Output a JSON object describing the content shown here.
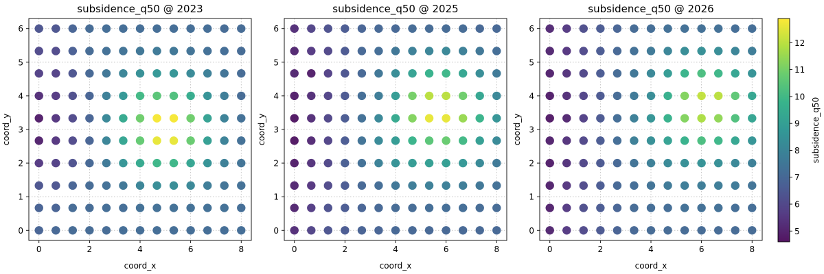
{
  "chart_data": [
    {
      "type": "scatter",
      "title": "subsidence_q50 @ 2023",
      "xlabel": "coord_x",
      "ylabel": "coord_y",
      "xticks": [
        "0",
        "2",
        "4",
        "6",
        "8"
      ],
      "yticks": [
        "0",
        "1",
        "2",
        "3",
        "4",
        "5",
        "6"
      ],
      "xlim": [
        -0.4,
        8.4
      ],
      "ylim": [
        -0.3,
        6.3
      ],
      "grid": true,
      "x": [
        0,
        0.667,
        1.333,
        2,
        2.667,
        3.333,
        4,
        4.667,
        5.333,
        6,
        6.667,
        7.333,
        8
      ],
      "y": [
        0,
        0.667,
        1.333,
        2,
        2.667,
        3.333,
        4,
        4.667,
        5.333,
        6
      ],
      "values": [
        [
          6.9,
          7.0,
          7.1,
          7.1,
          7.1,
          7.2,
          7.2,
          7.2,
          7.2,
          7.2,
          7.2,
          7.2,
          7.2
        ],
        [
          6.8,
          6.8,
          7.1,
          7.1,
          7.2,
          7.2,
          7.3,
          7.3,
          7.3,
          7.3,
          7.3,
          7.3,
          7.2
        ],
        [
          6.4,
          6.4,
          6.9,
          7.1,
          7.3,
          7.5,
          8.0,
          8.3,
          8.3,
          8.1,
          7.7,
          7.4,
          7.3
        ],
        [
          5.6,
          5.8,
          6.3,
          7.0,
          7.6,
          8.6,
          9.4,
          9.9,
          9.9,
          9.2,
          8.5,
          7.8,
          7.4
        ],
        [
          5.0,
          5.5,
          6.1,
          6.9,
          8.0,
          9.2,
          10.7,
          12.6,
          12.6,
          10.8,
          9.0,
          7.9,
          7.3
        ],
        [
          4.9,
          5.5,
          6.1,
          6.9,
          8.1,
          9.4,
          10.9,
          12.8,
          12.8,
          10.9,
          9.1,
          7.9,
          7.3
        ],
        [
          5.3,
          5.6,
          6.2,
          6.9,
          7.8,
          8.7,
          10.0,
          10.5,
          10.3,
          9.5,
          8.5,
          7.7,
          7.1
        ],
        [
          5.8,
          5.8,
          6.4,
          7.0,
          7.5,
          8.0,
          8.4,
          8.7,
          8.6,
          8.2,
          7.8,
          7.4,
          7.1
        ],
        [
          6.1,
          6.1,
          6.7,
          7.1,
          7.3,
          7.4,
          7.5,
          7.6,
          7.5,
          7.4,
          7.3,
          7.2,
          7.1
        ],
        [
          6.4,
          6.4,
          6.9,
          7.1,
          7.2,
          7.2,
          7.2,
          7.2,
          7.2,
          7.2,
          7.2,
          7.1,
          7.1
        ]
      ]
    },
    {
      "type": "scatter",
      "title": "subsidence_q50 @ 2025",
      "xlabel": "coord_x",
      "ylabel": "coord_y",
      "xticks": [
        "0",
        "2",
        "4",
        "6",
        "8"
      ],
      "yticks": [
        "0",
        "1",
        "2",
        "3",
        "4",
        "5",
        "6"
      ],
      "xlim": [
        -0.4,
        8.4
      ],
      "ylim": [
        -0.3,
        6.3
      ],
      "grid": true,
      "x": [
        0,
        0.667,
        1.333,
        2,
        2.667,
        3.333,
        4,
        4.667,
        5.333,
        6,
        6.667,
        7.333,
        8
      ],
      "y": [
        0,
        0.667,
        1.333,
        2,
        2.667,
        3.333,
        4,
        4.667,
        5.333,
        6
      ],
      "values": [
        [
          5.3,
          5.9,
          6.4,
          6.6,
          6.8,
          6.9,
          7.0,
          7.0,
          7.0,
          7.0,
          7.0,
          7.0,
          7.0
        ],
        [
          5.1,
          5.7,
          6.3,
          6.6,
          6.9,
          7.0,
          7.1,
          7.1,
          7.2,
          7.2,
          7.2,
          7.1,
          7.1
        ],
        [
          5.1,
          5.5,
          6.1,
          6.6,
          7.0,
          7.2,
          7.5,
          7.7,
          7.8,
          7.8,
          7.7,
          7.5,
          7.3
        ],
        [
          4.9,
          5.4,
          6.0,
          6.7,
          7.3,
          7.9,
          8.5,
          8.9,
          9.0,
          9.0,
          8.7,
          8.2,
          7.6
        ],
        [
          4.7,
          5.2,
          5.9,
          6.6,
          7.4,
          8.2,
          8.9,
          9.8,
          10.5,
          10.8,
          10.0,
          9.0,
          8.2
        ],
        [
          4.7,
          5.3,
          6.0,
          6.6,
          7.3,
          8.1,
          9.4,
          11.2,
          12.6,
          12.6,
          11.5,
          9.8,
          8.6
        ],
        [
          4.9,
          5.3,
          5.9,
          6.5,
          7.2,
          7.7,
          8.9,
          11.0,
          12.0,
          12.0,
          10.9,
          9.3,
          8.1
        ],
        [
          5.1,
          4.9,
          5.8,
          6.4,
          7.0,
          7.5,
          8.3,
          9.1,
          9.7,
          9.9,
          9.3,
          8.3,
          7.6
        ],
        [
          5.1,
          5.6,
          6.0,
          6.5,
          7.0,
          7.2,
          7.5,
          7.8,
          8.0,
          8.1,
          7.8,
          7.5,
          7.2
        ],
        [
          5.3,
          5.9,
          6.3,
          6.6,
          6.9,
          7.0,
          7.0,
          7.1,
          7.1,
          7.1,
          7.1,
          7.0,
          7.0
        ]
      ]
    },
    {
      "type": "scatter",
      "title": "subsidence_q50 @ 2026",
      "xlabel": "coord_x",
      "ylabel": "coord_y",
      "xticks": [
        "0",
        "2",
        "4",
        "6",
        "8"
      ],
      "yticks": [
        "0",
        "1",
        "2",
        "3",
        "4",
        "5",
        "6"
      ],
      "xlim": [
        -0.4,
        8.4
      ],
      "ylim": [
        -0.3,
        6.3
      ],
      "grid": true,
      "x": [
        0,
        0.667,
        1.333,
        2,
        2.667,
        3.333,
        4,
        4.667,
        5.333,
        6,
        6.667,
        7.333,
        8
      ],
      "y": [
        0,
        0.667,
        1.333,
        2,
        2.667,
        3.333,
        4,
        4.667,
        5.333,
        6
      ],
      "values": [
        [
          5.1,
          5.6,
          6.1,
          6.5,
          6.8,
          7.0,
          7.1,
          7.1,
          7.1,
          7.1,
          7.1,
          7.1,
          7.1
        ],
        [
          5.0,
          5.6,
          6.2,
          6.6,
          6.9,
          7.1,
          7.2,
          7.2,
          7.3,
          7.3,
          7.3,
          7.2,
          7.2
        ],
        [
          5.0,
          5.5,
          6.1,
          6.6,
          7.0,
          7.2,
          7.4,
          7.6,
          7.7,
          7.7,
          7.7,
          7.6,
          7.4
        ],
        [
          4.9,
          5.4,
          6.0,
          6.5,
          7.0,
          7.4,
          7.8,
          8.2,
          8.4,
          8.5,
          8.4,
          8.1,
          7.8
        ],
        [
          5.0,
          5.4,
          6.0,
          6.6,
          7.2,
          7.8,
          8.4,
          9.1,
          9.7,
          10.2,
          9.9,
          9.3,
          8.6
        ],
        [
          4.8,
          5.1,
          5.8,
          6.5,
          7.2,
          7.8,
          8.6,
          9.7,
          11.2,
          11.8,
          11.4,
          10.3,
          9.2
        ],
        [
          4.9,
          5.3,
          5.9,
          6.5,
          7.1,
          7.6,
          8.3,
          9.6,
          11.2,
          12.1,
          12.0,
          10.6,
          9.3
        ],
        [
          5.0,
          5.4,
          6.0,
          6.6,
          7.1,
          7.5,
          8.1,
          8.9,
          9.8,
          10.2,
          9.9,
          9.2,
          8.5
        ],
        [
          5.1,
          5.5,
          6.1,
          6.6,
          7.0,
          7.3,
          7.6,
          8.0,
          8.3,
          8.4,
          8.3,
          8.0,
          7.7
        ],
        [
          5.2,
          5.6,
          6.2,
          6.6,
          6.9,
          7.1,
          7.2,
          7.3,
          7.3,
          7.3,
          7.3,
          7.2,
          7.2
        ]
      ]
    }
  ],
  "colorbar": {
    "label": "subsidence_q50",
    "min": 4.6,
    "max": 12.9,
    "ticks": [
      5,
      6,
      7,
      8,
      9,
      10,
      11,
      12
    ],
    "colormap": "viridis"
  }
}
